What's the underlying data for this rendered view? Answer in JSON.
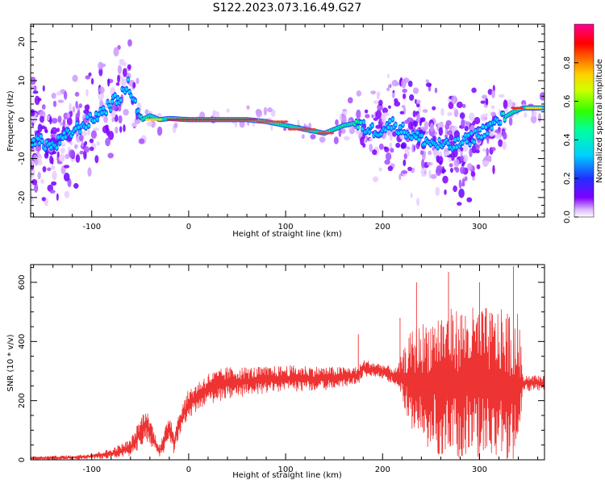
{
  "title": "S122.2023.073.16.49.G27",
  "chart_data": [
    {
      "type": "heatmap",
      "title": "",
      "xlabel": "Height of straight line (km)",
      "ylabel": "Frequency (Hz)",
      "xlim": [
        -163,
        367
      ],
      "ylim": [
        -25,
        24.5
      ],
      "xticks": [
        -100,
        0,
        100,
        200,
        300
      ],
      "yticks": [
        -20,
        -10,
        0,
        10,
        20
      ],
      "colorbar": {
        "label": "Normalized spectral amplitude",
        "range": [
          0,
          1
        ],
        "ticks": [
          "0.0",
          "0.2",
          "0.4",
          "0.6",
          "0.8"
        ],
        "colormap": "rainbow"
      },
      "ridge": {
        "x": [
          -160,
          -140,
          -120,
          -100,
          -85,
          -70,
          -62,
          -55,
          -48,
          -40,
          -30,
          -20,
          0,
          20,
          40,
          60,
          80,
          100,
          120,
          140,
          160,
          170,
          180,
          195,
          210,
          230,
          250,
          270,
          290,
          310,
          325,
          335,
          345,
          367
        ],
        "y": [
          -5,
          -7,
          -3,
          0,
          3,
          6,
          9,
          4,
          0,
          1,
          0,
          0.3,
          0,
          0,
          0,
          0,
          -0.5,
          -1.5,
          -2.5,
          -3.5,
          -1.5,
          -1,
          -2,
          -3,
          -1,
          -4,
          -6,
          -7,
          -5,
          -2,
          0.5,
          2,
          3,
          3
        ]
      },
      "activity": {
        "x": [
          -163,
          -120,
          -80,
          -55,
          -40,
          0,
          150,
          170,
          190,
          215,
          240,
          300,
          320,
          335,
          367
        ],
        "level": [
          1.0,
          0.9,
          0.8,
          0.6,
          0.2,
          0.05,
          0.08,
          0.35,
          0.7,
          0.9,
          1.0,
          0.95,
          0.6,
          0.15,
          0.1
        ]
      }
    },
    {
      "type": "line",
      "title": "",
      "xlabel": "Height of straight line (km)",
      "ylabel": "SNR (10 * v/v)",
      "xlim": [
        -163,
        367
      ],
      "ylim": [
        0,
        660
      ],
      "xticks": [
        -100,
        0,
        100,
        200,
        300
      ],
      "yticks": [
        0,
        200,
        400,
        600
      ],
      "color": "#ee3333",
      "envelope": {
        "x": [
          -163,
          -120,
          -100,
          -80,
          -60,
          -50,
          -45,
          -40,
          -35,
          -30,
          -25,
          -20,
          -15,
          -10,
          0,
          20,
          40,
          60,
          80,
          100,
          120,
          140,
          160,
          175,
          180,
          200,
          215,
          220,
          230,
          260,
          300,
          340,
          345,
          367
        ],
        "mean": [
          5,
          8,
          12,
          20,
          40,
          90,
          120,
          100,
          60,
          30,
          60,
          110,
          60,
          120,
          190,
          240,
          260,
          265,
          270,
          275,
          275,
          275,
          280,
          285,
          310,
          300,
          280,
          280,
          260,
          260,
          260,
          240,
          260,
          260
        ],
        "amp": [
          6,
          8,
          10,
          18,
          30,
          50,
          55,
          50,
          30,
          25,
          35,
          60,
          40,
          45,
          50,
          55,
          55,
          50,
          45,
          45,
          45,
          40,
          35,
          30,
          30,
          25,
          30,
          80,
          180,
          250,
          260,
          260,
          30,
          25
        ]
      },
      "peaks": [
        {
          "x": 175,
          "y": 425
        },
        {
          "x": 218,
          "y": 480
        },
        {
          "x": 235,
          "y": 600
        },
        {
          "x": 268,
          "y": 635
        },
        {
          "x": 300,
          "y": 600
        },
        {
          "x": 335,
          "y": 655
        }
      ]
    }
  ]
}
